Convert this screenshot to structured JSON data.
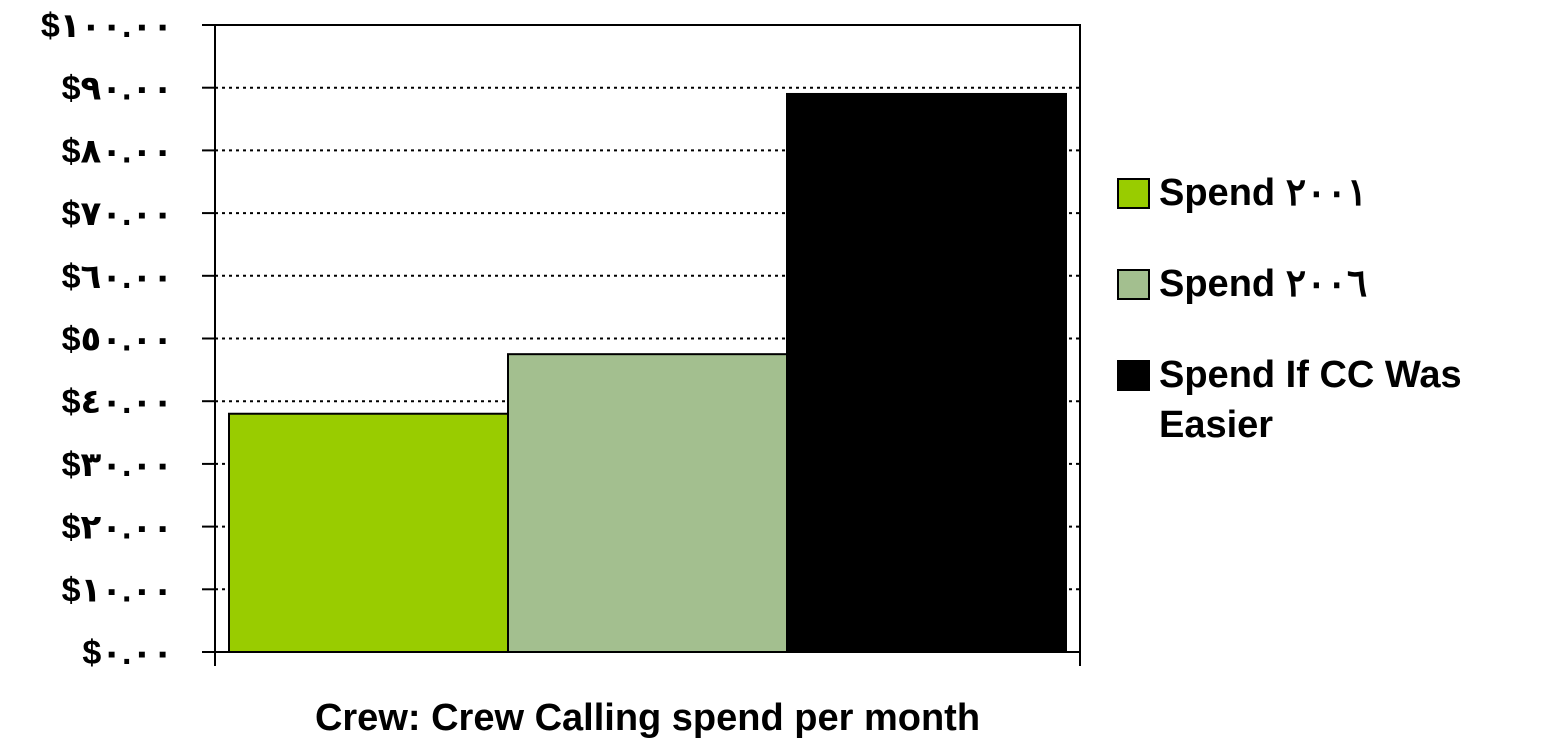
{
  "chart_data": {
    "type": "bar",
    "title": "",
    "xlabel": "Crew: Crew Calling spend per month",
    "ylabel": "",
    "ylim": [
      0,
      100
    ],
    "grid": true,
    "legend_position": "right",
    "y_ticks": [
      {
        "value": 0,
        "label": "$٠.٠٠"
      },
      {
        "value": 10,
        "label": "$١٠.٠٠"
      },
      {
        "value": 20,
        "label": "$٢٠.٠٠"
      },
      {
        "value": 30,
        "label": "$٣٠.٠٠"
      },
      {
        "value": 40,
        "label": "$٤٠.٠٠"
      },
      {
        "value": 50,
        "label": "$٥٠.٠٠"
      },
      {
        "value": 60,
        "label": "$٦٠.٠٠"
      },
      {
        "value": 70,
        "label": "$٧٠.٠٠"
      },
      {
        "value": 80,
        "label": "$٨٠.٠٠"
      },
      {
        "value": 90,
        "label": "$٩٠.٠٠"
      },
      {
        "value": 100,
        "label": "$١٠٠.٠٠"
      }
    ],
    "series": [
      {
        "name": "Spend ٢٠٠١",
        "value": 38,
        "color": "#99cc00"
      },
      {
        "name": "Spend ٢٠٠٦",
        "value": 47.5,
        "color": "#a3bf8f"
      },
      {
        "name": "Spend If CC Was Easier",
        "value": 89,
        "color": "#000000"
      }
    ]
  }
}
